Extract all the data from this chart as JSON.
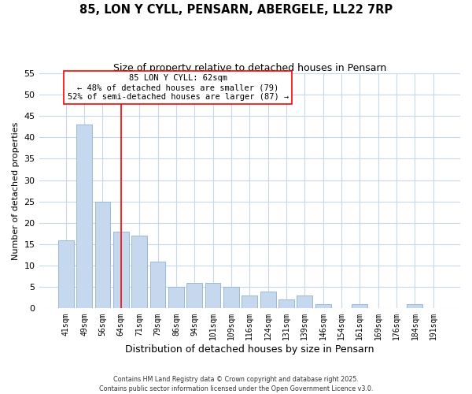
{
  "title": "85, LON Y CYLL, PENSARN, ABERGELE, LL22 7RP",
  "subtitle": "Size of property relative to detached houses in Pensarn",
  "xlabel": "Distribution of detached houses by size in Pensarn",
  "ylabel": "Number of detached properties",
  "bar_color": "#c5d8ee",
  "bar_edge_color": "#9ab8d8",
  "background_color": "#ffffff",
  "grid_color": "#c8d8ea",
  "categories": [
    "41sqm",
    "49sqm",
    "56sqm",
    "64sqm",
    "71sqm",
    "79sqm",
    "86sqm",
    "94sqm",
    "101sqm",
    "109sqm",
    "116sqm",
    "124sqm",
    "131sqm",
    "139sqm",
    "146sqm",
    "154sqm",
    "161sqm",
    "169sqm",
    "176sqm",
    "184sqm",
    "191sqm"
  ],
  "values": [
    16,
    43,
    25,
    18,
    17,
    11,
    5,
    6,
    6,
    5,
    3,
    4,
    2,
    3,
    1,
    0,
    1,
    0,
    0,
    1,
    0
  ],
  "ylim": [
    0,
    55
  ],
  "yticks": [
    0,
    5,
    10,
    15,
    20,
    25,
    30,
    35,
    40,
    45,
    50,
    55
  ],
  "vline_x_index": 3,
  "annotation_title": "85 LON Y CYLL: 62sqm",
  "annotation_line1": "← 48% of detached houses are smaller (79)",
  "annotation_line2": "52% of semi-detached houses are larger (87) →",
  "footer_line1": "Contains HM Land Registry data © Crown copyright and database right 2025.",
  "footer_line2": "Contains public sector information licensed under the Open Government Licence v3.0."
}
